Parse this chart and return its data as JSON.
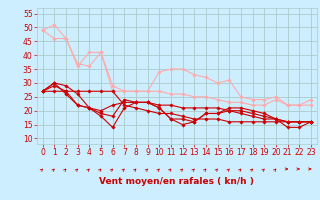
{
  "xlabel": "Vent moyen/en rafales ( kn/h )",
  "background_color": "#cceeff",
  "grid_color": "#aacccc",
  "xlim": [
    -0.5,
    23.5
  ],
  "ylim": [
    8,
    57
  ],
  "yticks": [
    10,
    15,
    20,
    25,
    30,
    35,
    40,
    45,
    50,
    55
  ],
  "xticks": [
    0,
    1,
    2,
    3,
    4,
    5,
    6,
    7,
    8,
    9,
    10,
    11,
    12,
    13,
    14,
    15,
    16,
    17,
    18,
    19,
    20,
    21,
    22,
    23
  ],
  "line1_x": [
    0,
    1,
    2,
    3,
    4,
    5,
    6,
    7,
    8,
    9,
    10,
    11,
    12,
    13,
    14,
    15,
    16,
    17,
    18,
    19,
    20,
    21,
    22,
    23
  ],
  "line1_y": [
    49,
    51,
    46,
    37,
    36,
    41,
    27,
    27,
    27,
    27,
    34,
    35,
    35,
    33,
    32,
    30,
    31,
    25,
    24,
    24,
    25,
    22,
    22,
    22
  ],
  "line1_color": "#ffaaaa",
  "line2_x": [
    0,
    1,
    2,
    3,
    4,
    5,
    6,
    7,
    8,
    9,
    10,
    11,
    12,
    13,
    14,
    15,
    16,
    17,
    18,
    19,
    20,
    21,
    22,
    23
  ],
  "line2_y": [
    49,
    46,
    46,
    36,
    41,
    41,
    29,
    27,
    27,
    27,
    27,
    26,
    26,
    25,
    25,
    24,
    23,
    23,
    22,
    22,
    24,
    22,
    22,
    24
  ],
  "line2_color": "#ffaaaa",
  "line3_x": [
    0,
    1,
    2,
    3,
    4,
    5,
    6,
    7,
    8,
    9,
    10,
    11,
    12,
    13,
    14,
    15,
    16,
    17,
    18,
    19,
    20,
    21,
    22,
    23
  ],
  "line3_y": [
    27,
    30,
    29,
    26,
    21,
    19,
    18,
    24,
    23,
    23,
    21,
    17,
    17,
    16,
    19,
    19,
    20,
    19,
    18,
    17,
    17,
    16,
    16,
    16
  ],
  "line3_color": "#cc0000",
  "line4_x": [
    0,
    1,
    2,
    3,
    4,
    5,
    6,
    7,
    8,
    9,
    10,
    11,
    12,
    13,
    14,
    15,
    16,
    17,
    18,
    19,
    20,
    21,
    22,
    23
  ],
  "line4_y": [
    27,
    29,
    27,
    22,
    21,
    20,
    22,
    23,
    23,
    23,
    22,
    22,
    21,
    21,
    21,
    21,
    20,
    20,
    19,
    18,
    17,
    16,
    16,
    16
  ],
  "line4_color": "#cc0000",
  "line5_x": [
    0,
    1,
    2,
    3,
    4,
    5,
    6,
    7,
    8,
    9,
    10,
    11,
    12,
    13,
    14,
    15,
    16,
    17,
    18,
    19,
    20,
    21,
    22,
    23
  ],
  "line5_y": [
    27,
    30,
    26,
    22,
    21,
    18,
    14,
    21,
    23,
    23,
    21,
    17,
    15,
    16,
    19,
    19,
    21,
    21,
    20,
    19,
    17,
    14,
    14,
    16
  ],
  "line5_color": "#cc0000",
  "line6_x": [
    0,
    1,
    2,
    3,
    4,
    5,
    6,
    7,
    8,
    9,
    10,
    11,
    12,
    13,
    14,
    15,
    16,
    17,
    18,
    19,
    20,
    21,
    22,
    23
  ],
  "line6_y": [
    27,
    27,
    27,
    27,
    27,
    27,
    27,
    22,
    21,
    20,
    19,
    19,
    18,
    17,
    17,
    17,
    16,
    16,
    16,
    16,
    16,
    16,
    16,
    16
  ],
  "line6_color": "#cc0000",
  "marker": "D",
  "markersize": 1.8,
  "linewidth": 0.8,
  "arrow_color": "#cc0000",
  "xlabel_color": "#cc0000",
  "tick_color": "#cc0000",
  "xlabel_fontsize": 6.5,
  "tick_fontsize": 5.5,
  "arrow_angles_deg": [
    45,
    45,
    45,
    45,
    45,
    45,
    45,
    45,
    45,
    45,
    45,
    45,
    45,
    45,
    45,
    45,
    45,
    45,
    45,
    45,
    45,
    90,
    90,
    90
  ]
}
